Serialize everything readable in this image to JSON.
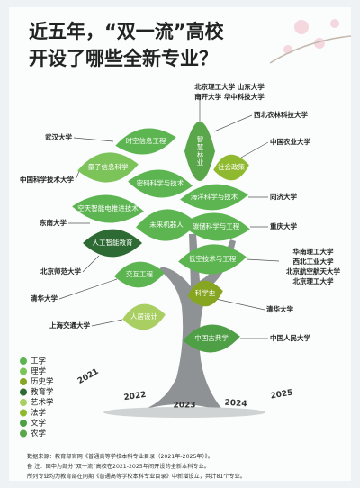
{
  "title_lines": [
    "近五年，“双一流”高校",
    "开设了哪些全新专业？"
  ],
  "leaves": [
    {
      "label": "时空信息工程",
      "color": "#5db552"
    },
    {
      "label": "智慧林业",
      "color": "#5aa64a"
    },
    {
      "label": "量子信息科学",
      "color": "#7cc35a"
    },
    {
      "label": "密码科学与技术",
      "color": "#5db552"
    },
    {
      "label": "社会政策",
      "color": "#8fb92e"
    },
    {
      "label": "海洋科学与技术",
      "color": "#5db552"
    },
    {
      "label": "空天智能电推进技术",
      "color": "#5db552"
    },
    {
      "label": "未来机器人",
      "color": "#5db552"
    },
    {
      "label": "碳储科学与工程",
      "color": "#5db552"
    },
    {
      "label": "人工智能教育",
      "color": "#2e6b34"
    },
    {
      "label": "低空技术与工程",
      "color": "#5db552"
    },
    {
      "label": "交互工程",
      "color": "#5db552"
    },
    {
      "label": "科学史",
      "color": "#86a521"
    },
    {
      "label": "人居设计",
      "color": "#a9cf63"
    },
    {
      "label": "中国古典学",
      "color": "#4f9f46"
    }
  ],
  "universities": [
    "北京理工大学 山东大学",
    "南开大学 华中科技大学",
    "西北农林科技大学",
    "武汉大学",
    "中国农业大学",
    "中国科学技术大学",
    "同济大学",
    "东南大学",
    "重庆大学",
    "北京师范大学",
    "华南理工大学",
    "西北工业大学",
    "北京航空航天大学",
    "北京理工大学",
    "清华大学",
    "清华大学",
    "上海交通大学",
    "中国人民大学"
  ],
  "legend": [
    {
      "label": "工学",
      "color": "#5db552"
    },
    {
      "label": "理学",
      "color": "#7cc35a"
    },
    {
      "label": "历史学",
      "color": "#86a521"
    },
    {
      "label": "教育学",
      "color": "#2e6b34"
    },
    {
      "label": "艺术学",
      "color": "#a9cf63"
    },
    {
      "label": "法学",
      "color": "#8fb92e"
    },
    {
      "label": "文学",
      "color": "#4f9f46"
    },
    {
      "label": "农学",
      "color": "#5aa64a"
    }
  ],
  "years": [
    "2021",
    "2022",
    "2023",
    "2024",
    "2025"
  ],
  "notes": [
    "数据来源：教育部官网《普通高等学校本科专业目录（2021年-2025年）》。",
    "备 注：图中为部分“双一流”高校在2021-2025年间开设的全新本科专业。",
    "所列专业均为教育部在同期《普通高等学校本科专业目录》中新增设立，共计81个专业。"
  ]
}
